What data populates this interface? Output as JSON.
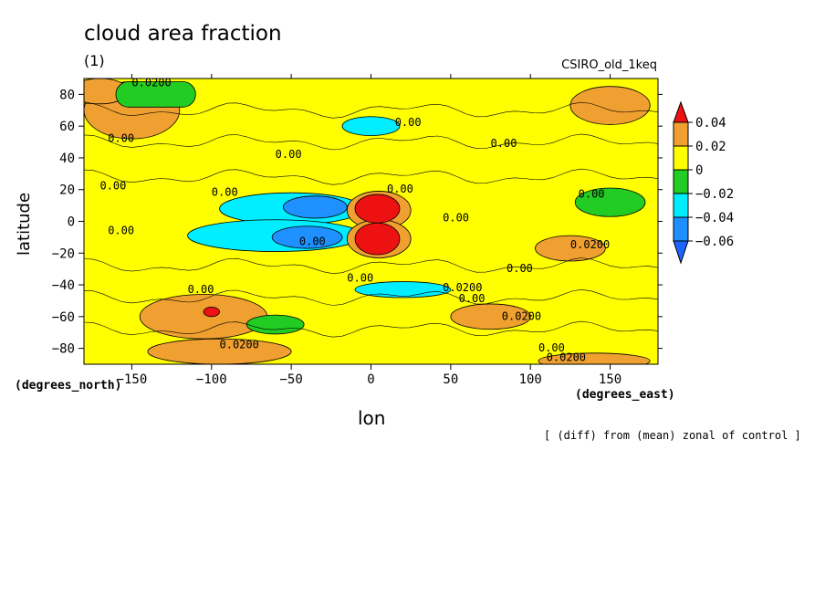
{
  "chart_data": {
    "type": "heatmap",
    "title": "cloud area fraction",
    "subtitle": "(1)",
    "model_label": "CSIRO_old_1keq",
    "xlabel": "lon",
    "ylabel": "latitude",
    "x_units": "(degrees_east)",
    "y_units": "(degrees_north)",
    "note": "[ (diff) from (mean) zonal of control ]",
    "xlim": [
      -180,
      180
    ],
    "ylim": [
      -90,
      90
    ],
    "x_ticks": [
      -150,
      -100,
      -50,
      0,
      50,
      100,
      150
    ],
    "x_tick_labels": [
      "−150",
      "−100",
      "−50",
      "0",
      "50",
      "100",
      "150"
    ],
    "y_ticks": [
      80,
      60,
      40,
      20,
      0,
      -20,
      -40,
      -60,
      -80
    ],
    "y_tick_labels": [
      "80",
      "60",
      "40",
      "20",
      "0",
      "−20",
      "−40",
      "−60",
      "−80"
    ],
    "colorbar": {
      "levels": [
        0.04,
        0.02,
        0,
        -0.02,
        -0.04,
        -0.06
      ],
      "level_labels": [
        "0.04",
        "0.02",
        "0",
        "−0.02",
        "−0.04",
        "−0.06"
      ],
      "colors": [
        "#ee1111",
        "#f0a030",
        "#ffff00",
        "#22cc22",
        "#00eeff",
        "#1e90ff",
        "#1e64ff"
      ]
    },
    "contour_labels": [
      {
        "text": "0.0200",
        "lon": -150,
        "lat": 85
      },
      {
        "text": "0.00",
        "lon": -165,
        "lat": 50
      },
      {
        "text": "0.00",
        "lon": -60,
        "lat": 40
      },
      {
        "text": "0.00",
        "lon": -170,
        "lat": 20
      },
      {
        "text": "0.00",
        "lon": -100,
        "lat": 16
      },
      {
        "text": "0.00",
        "lon": -165,
        "lat": -8
      },
      {
        "text": "0.00",
        "lon": 15,
        "lat": 60
      },
      {
        "text": "0.00",
        "lon": 75,
        "lat": 47
      },
      {
        "text": "0.00",
        "lon": 10,
        "lat": 18
      },
      {
        "text": "0.00",
        "lon": 45,
        "lat": 0
      },
      {
        "text": "0.00",
        "lon": -45,
        "lat": -15
      },
      {
        "text": "0.00",
        "lon": 130,
        "lat": 15
      },
      {
        "text": "0.0200",
        "lon": 125,
        "lat": -17
      },
      {
        "text": "0.00",
        "lon": -15,
        "lat": -38
      },
      {
        "text": "0.00",
        "lon": 85,
        "lat": -32
      },
      {
        "text": "0.00",
        "lon": -115,
        "lat": -45
      },
      {
        "text": "0.0200",
        "lon": 45,
        "lat": -44
      },
      {
        "text": "0.00",
        "lon": 55,
        "lat": -51
      },
      {
        "text": "0.0200",
        "lon": 82,
        "lat": -62
      },
      {
        "text": "0.0200",
        "lon": -95,
        "lat": -80
      },
      {
        "text": "0.00",
        "lon": 105,
        "lat": -82
      },
      {
        "text": "0.0200",
        "lon": 110,
        "lat": -88
      }
    ]
  }
}
